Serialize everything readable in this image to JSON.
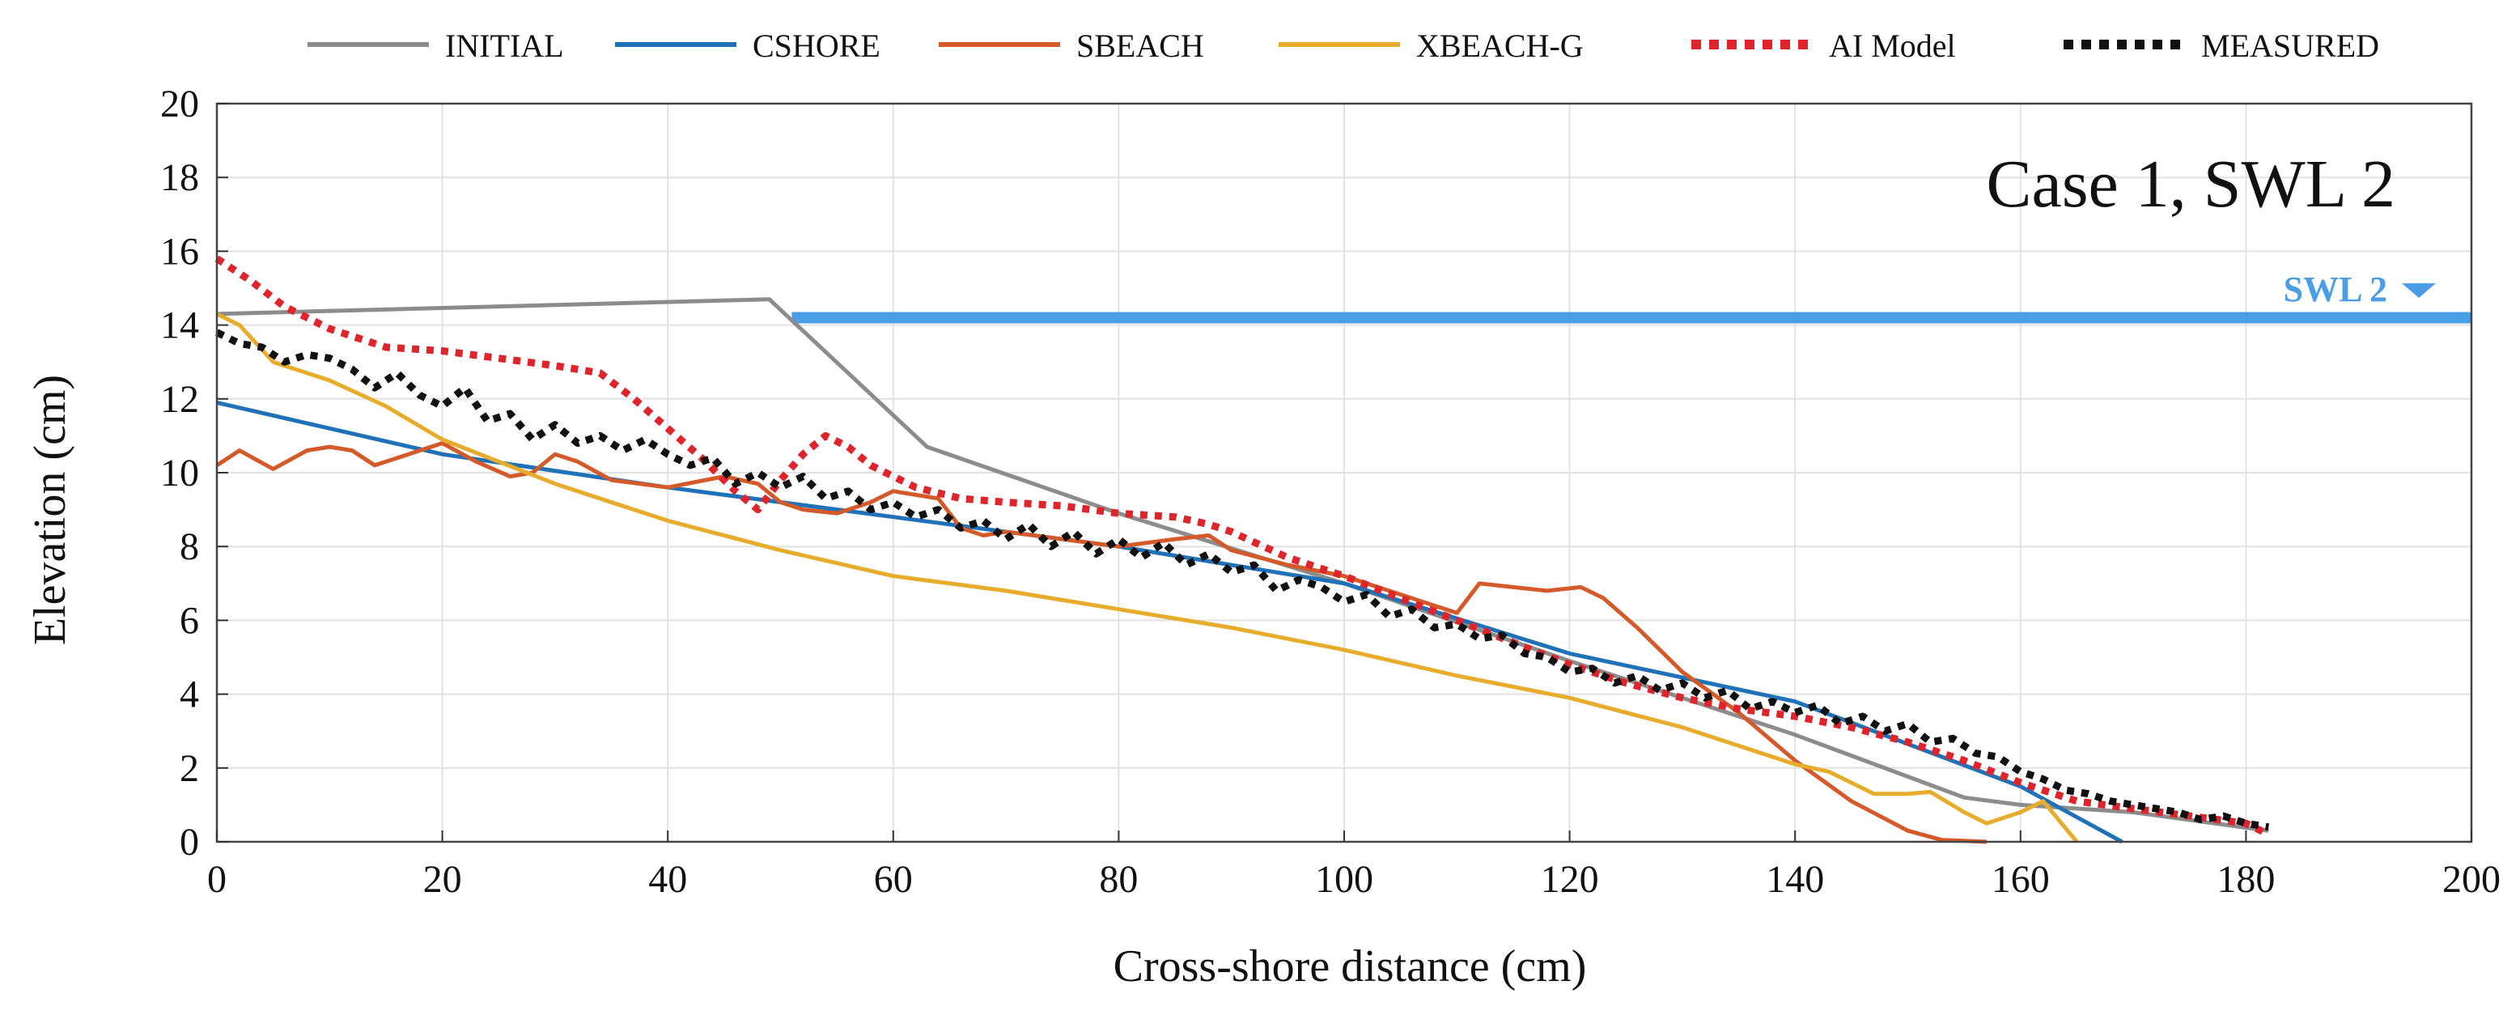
{
  "chart_data": {
    "type": "line",
    "annotation": "Case 1, SWL 2",
    "xlabel": "Cross-shore distance (cm)",
    "ylabel": "Elevation (cm)",
    "xlim": [
      0,
      200
    ],
    "ylim": [
      0,
      20
    ],
    "xticks": [
      0,
      20,
      40,
      60,
      80,
      100,
      120,
      140,
      160,
      180,
      200
    ],
    "yticks": [
      0,
      2,
      4,
      6,
      8,
      10,
      12,
      14,
      16,
      18,
      20
    ],
    "grid": true,
    "legend_position": "top",
    "swl": {
      "label": "SWL 2",
      "y": 14.2,
      "x_start": 51,
      "color": "#4a9ee6"
    },
    "series": [
      {
        "name": "INITIAL",
        "color": "#8c8c8c",
        "style": "solid",
        "x": [
          0,
          49,
          63,
          80,
          100,
          120,
          140,
          155,
          160,
          170,
          182
        ],
        "y": [
          14.3,
          14.7,
          10.7,
          8.9,
          7.0,
          4.9,
          2.9,
          1.2,
          1.0,
          0.8,
          0.3
        ]
      },
      {
        "name": "CSHORE",
        "color": "#1f72b8",
        "style": "solid",
        "x": [
          0,
          20,
          40,
          60,
          80,
          100,
          120,
          140,
          160,
          169
        ],
        "y": [
          11.9,
          10.5,
          9.6,
          8.8,
          8.0,
          7.0,
          5.1,
          3.8,
          1.5,
          0.0
        ]
      },
      {
        "name": "SBEACH",
        "color": "#d45a2a",
        "style": "solid",
        "x": [
          0,
          2,
          5,
          8,
          10,
          12,
          14,
          17,
          20,
          23,
          26,
          28,
          30,
          32,
          35,
          40,
          45,
          48,
          50,
          52,
          55,
          58,
          60,
          62,
          64,
          66,
          68,
          70,
          75,
          80,
          85,
          88,
          90,
          95,
          100,
          105,
          110,
          112,
          115,
          118,
          121,
          123,
          126,
          130,
          135,
          140,
          145,
          150,
          153,
          157
        ],
        "y": [
          10.2,
          10.6,
          10.1,
          10.6,
          10.7,
          10.6,
          10.2,
          10.5,
          10.8,
          10.3,
          9.9,
          10.0,
          10.5,
          10.3,
          9.8,
          9.6,
          9.9,
          9.7,
          9.2,
          9.0,
          8.9,
          9.2,
          9.5,
          9.4,
          9.3,
          8.5,
          8.3,
          8.4,
          8.2,
          8.0,
          8.2,
          8.3,
          7.9,
          7.5,
          7.2,
          6.7,
          6.2,
          7.0,
          6.9,
          6.8,
          6.9,
          6.6,
          5.8,
          4.6,
          3.5,
          2.2,
          1.1,
          0.3,
          0.05,
          0.0
        ]
      },
      {
        "name": "XBEACH-G",
        "color": "#e8ac2c",
        "style": "solid",
        "x": [
          0,
          2,
          5,
          10,
          15,
          20,
          30,
          40,
          50,
          60,
          70,
          80,
          90,
          100,
          110,
          120,
          130,
          135,
          140,
          143,
          147,
          150,
          152,
          155,
          157,
          160,
          162,
          165
        ],
        "y": [
          14.3,
          14.0,
          13.0,
          12.5,
          11.8,
          10.9,
          9.7,
          8.7,
          7.9,
          7.2,
          6.8,
          6.3,
          5.8,
          5.2,
          4.5,
          3.9,
          3.1,
          2.6,
          2.1,
          1.9,
          1.3,
          1.3,
          1.35,
          0.8,
          0.5,
          0.8,
          1.1,
          0.0
        ]
      },
      {
        "name": "AI Model",
        "color": "#e0242c",
        "style": "dotted",
        "x": [
          0,
          3,
          6,
          10,
          15,
          20,
          25,
          30,
          34,
          37,
          40,
          43,
          46,
          48,
          50,
          52,
          54,
          56,
          58,
          62,
          66,
          70,
          75,
          80,
          85,
          88,
          90,
          95,
          100,
          105,
          110,
          115,
          120,
          125,
          130,
          135,
          140,
          145,
          150,
          155,
          160,
          165,
          170,
          175,
          180,
          182
        ],
        "y": [
          15.8,
          15.2,
          14.5,
          13.9,
          13.4,
          13.3,
          13.1,
          12.9,
          12.7,
          12.0,
          11.2,
          10.4,
          9.5,
          9.0,
          9.8,
          10.5,
          11.0,
          10.7,
          10.2,
          9.6,
          9.3,
          9.2,
          9.1,
          8.9,
          8.8,
          8.6,
          8.4,
          7.7,
          7.2,
          6.6,
          6.0,
          5.4,
          4.8,
          4.3,
          3.9,
          3.6,
          3.4,
          3.1,
          2.7,
          2.2,
          1.6,
          1.1,
          0.9,
          0.7,
          0.5,
          0.2
        ]
      },
      {
        "name": "MEASURED",
        "color": "#111111",
        "style": "dotted",
        "x": [
          0,
          2,
          4,
          6,
          8,
          10,
          12,
          14,
          16,
          18,
          20,
          22,
          24,
          26,
          28,
          30,
          32,
          34,
          36,
          38,
          40,
          42,
          44,
          46,
          48,
          50,
          52,
          54,
          56,
          58,
          60,
          62,
          64,
          66,
          68,
          70,
          72,
          74,
          76,
          78,
          80,
          82,
          84,
          86,
          88,
          90,
          92,
          94,
          96,
          98,
          100,
          102,
          104,
          106,
          108,
          110,
          112,
          114,
          116,
          118,
          120,
          122,
          124,
          126,
          128,
          130,
          132,
          134,
          136,
          138,
          140,
          142,
          144,
          146,
          148,
          150,
          152,
          154,
          156,
          158,
          160,
          162,
          164,
          166,
          168,
          170,
          172,
          174,
          176,
          178,
          180,
          182
        ],
        "y": [
          13.8,
          13.5,
          13.4,
          13.0,
          13.2,
          13.1,
          12.8,
          12.3,
          12.7,
          12.1,
          11.8,
          12.3,
          11.4,
          11.6,
          10.9,
          11.3,
          10.8,
          11.0,
          10.6,
          10.9,
          10.5,
          10.2,
          10.4,
          9.7,
          10.0,
          9.6,
          9.9,
          9.3,
          9.5,
          9.0,
          9.2,
          8.8,
          9.0,
          8.5,
          8.7,
          8.2,
          8.6,
          8.0,
          8.4,
          7.8,
          8.2,
          7.7,
          8.1,
          7.5,
          7.8,
          7.3,
          7.5,
          6.8,
          7.1,
          6.9,
          6.5,
          6.7,
          6.1,
          6.3,
          5.8,
          5.9,
          5.5,
          5.6,
          5.1,
          5.0,
          4.6,
          4.7,
          4.3,
          4.5,
          4.1,
          4.3,
          3.9,
          4.1,
          3.6,
          3.8,
          3.5,
          3.7,
          3.2,
          3.4,
          3.0,
          3.2,
          2.7,
          2.8,
          2.4,
          2.3,
          1.9,
          1.7,
          1.4,
          1.3,
          1.1,
          1.0,
          0.9,
          0.8,
          0.6,
          0.7,
          0.5,
          0.4
        ]
      }
    ]
  }
}
